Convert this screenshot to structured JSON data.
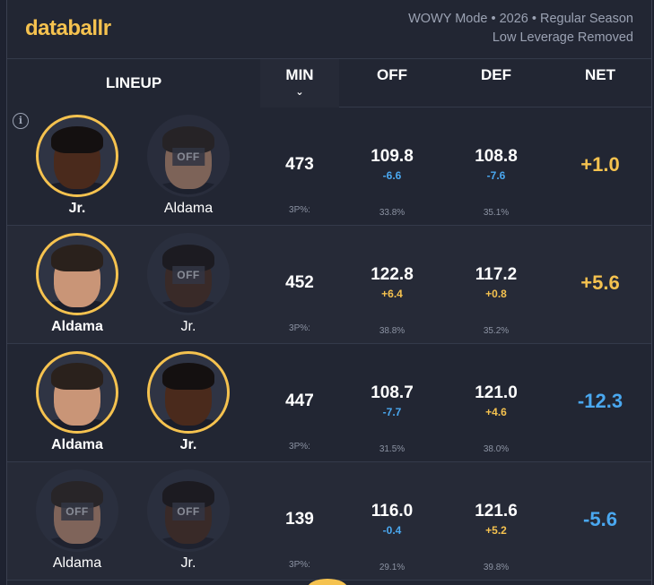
{
  "brand": {
    "logo": "databallr",
    "accent": "#f5c24f"
  },
  "meta": {
    "line1": "WOWY Mode • 2026 • Regular Season",
    "line2": "Low Leverage Removed"
  },
  "headers": {
    "lineup": "LINEUP",
    "min": "MIN",
    "off": "OFF",
    "def": "DEF",
    "net": "NET",
    "sort_icon": "chevron-down-icon"
  },
  "colors": {
    "positive": "#f5c24f",
    "negative": "#4aa8f0"
  },
  "rows": [
    {
      "p1": {
        "name": "Jr.",
        "state": "on",
        "off_label": ""
      },
      "p2": {
        "name": "Aldama",
        "state": "off",
        "off_label": "OFF"
      },
      "min": "473",
      "tp_label": "3P%:",
      "off": {
        "value": "109.8",
        "diff": "-6.6",
        "pct": "33.8%"
      },
      "def": {
        "value": "108.8",
        "diff": "-7.6",
        "pct": "35.1%"
      },
      "net": "+1.0"
    },
    {
      "p1": {
        "name": "Aldama",
        "state": "on",
        "off_label": ""
      },
      "p2": {
        "name": "Jr.",
        "state": "off",
        "off_label": "OFF"
      },
      "min": "452",
      "tp_label": "3P%:",
      "off": {
        "value": "122.8",
        "diff": "+6.4",
        "pct": "38.8%"
      },
      "def": {
        "value": "117.2",
        "diff": "+0.8",
        "pct": "35.2%"
      },
      "net": "+5.6"
    },
    {
      "p1": {
        "name": "Aldama",
        "state": "on",
        "off_label": ""
      },
      "p2": {
        "name": "Jr.",
        "state": "on",
        "off_label": ""
      },
      "min": "447",
      "tp_label": "3P%:",
      "off": {
        "value": "108.7",
        "diff": "-7.7",
        "pct": "31.5%"
      },
      "def": {
        "value": "121.0",
        "diff": "+4.6",
        "pct": "38.0%"
      },
      "net": "-12.3"
    },
    {
      "p1": {
        "name": "Aldama",
        "state": "off",
        "off_label": "OFF"
      },
      "p2": {
        "name": "Jr.",
        "state": "off",
        "off_label": "OFF"
      },
      "min": "139",
      "tp_label": "3P%:",
      "off": {
        "value": "116.0",
        "diff": "-0.4",
        "pct": "29.1%"
      },
      "def": {
        "value": "121.6",
        "diff": "+5.2",
        "pct": "39.8%"
      },
      "net": "-5.6"
    }
  ]
}
